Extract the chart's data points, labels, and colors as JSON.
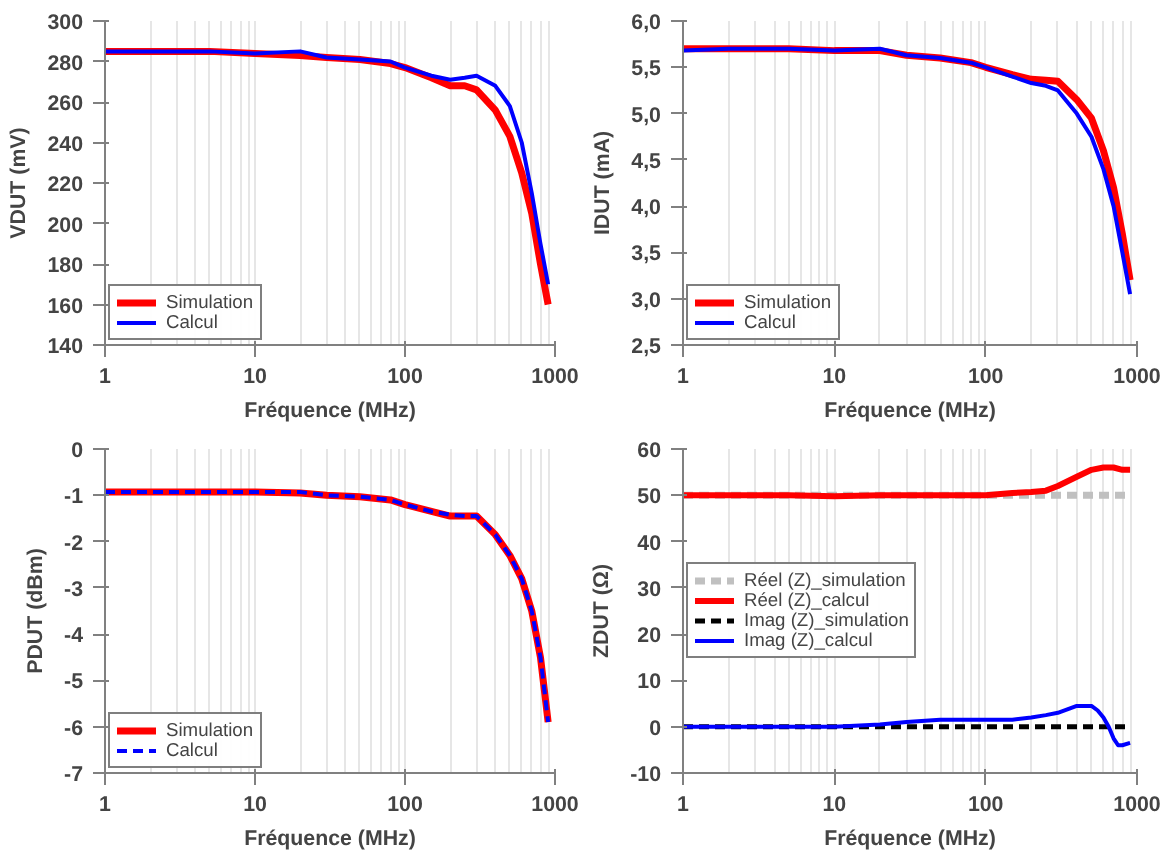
{
  "chart_data": [
    {
      "type": "line",
      "xlabel": "Fréquence (MHz)",
      "ylabel": "VDUT (mV)",
      "log": "x",
      "grid": "x",
      "legend": "bottom left",
      "xlim": [
        1,
        1000
      ],
      "xticks": [
        1,
        10,
        100,
        1000
      ],
      "ylim": [
        140,
        300
      ],
      "yticks": [
        140,
        160,
        180,
        200,
        220,
        240,
        260,
        280,
        300
      ],
      "x": [
        1,
        2,
        5,
        10,
        20,
        30,
        50,
        80,
        100,
        150,
        200,
        250,
        300,
        400,
        500,
        600,
        700,
        800,
        900
      ],
      "series": [
        {
          "name": "Simulation",
          "color": "#ff0000",
          "line_style": "solid",
          "values": [
            285,
            285,
            285,
            284,
            283,
            282,
            281,
            279,
            277,
            272,
            268,
            268,
            266,
            256,
            243,
            225,
            205,
            180,
            160
          ]
        },
        {
          "name": "Calcul",
          "color": "#0000ff",
          "line_style": "solid",
          "values": [
            285,
            285,
            285,
            284,
            285,
            282,
            281,
            280,
            277,
            273,
            271,
            272,
            273,
            268,
            258,
            240,
            215,
            190,
            170
          ]
        }
      ]
    },
    {
      "type": "line",
      "xlabel": "Fréquence (MHz)",
      "ylabel": "IDUT (mA)",
      "log": "x",
      "grid": "x",
      "legend": "bottom left",
      "xlim": [
        1,
        1000
      ],
      "xticks": [
        1,
        10,
        100,
        1000
      ],
      "ylim": [
        2.5,
        6.0
      ],
      "yticks": [
        {
          "value": 2.5,
          "label": "2,5"
        },
        {
          "value": 3.0,
          "label": "3,0"
        },
        {
          "value": 3.5,
          "label": "3,5"
        },
        {
          "value": 4.0,
          "label": "4,0"
        },
        {
          "value": 4.5,
          "label": "4,5"
        },
        {
          "value": 5.0,
          "label": "5,0"
        },
        {
          "value": 5.5,
          "label": "5,5"
        },
        {
          "value": 6.0,
          "label": "6,0"
        }
      ],
      "x": [
        1,
        2,
        5,
        10,
        20,
        30,
        50,
        80,
        100,
        150,
        200,
        250,
        300,
        400,
        500,
        600,
        700,
        800,
        900
      ],
      "series": [
        {
          "name": "Simulation",
          "color": "#ff0000",
          "line_style": "solid",
          "values": [
            5.7,
            5.7,
            5.7,
            5.68,
            5.68,
            5.63,
            5.6,
            5.55,
            5.5,
            5.42,
            5.37,
            5.36,
            5.35,
            5.15,
            4.95,
            4.6,
            4.2,
            3.7,
            3.2
          ]
        },
        {
          "name": "Calcul",
          "color": "#0000ff",
          "line_style": "solid",
          "values": [
            5.68,
            5.7,
            5.7,
            5.68,
            5.7,
            5.63,
            5.6,
            5.55,
            5.5,
            5.4,
            5.33,
            5.3,
            5.25,
            5.0,
            4.75,
            4.4,
            4.0,
            3.5,
            3.05
          ]
        }
      ]
    },
    {
      "type": "line",
      "xlabel": "Fréquence (MHz)",
      "ylabel": "PDUT (dBm)",
      "log": "x",
      "grid": "x",
      "legend": "bottom left",
      "xlim": [
        1,
        1000
      ],
      "xticks": [
        1,
        10,
        100,
        1000
      ],
      "ylim": [
        -7,
        0
      ],
      "yticks": [
        -7,
        -6,
        -5,
        -4,
        -3,
        -2,
        -1,
        0
      ],
      "x": [
        1,
        2,
        5,
        10,
        20,
        30,
        50,
        80,
        100,
        150,
        200,
        250,
        300,
        400,
        500,
        600,
        700,
        800,
        900
      ],
      "series": [
        {
          "name": "Simulation",
          "color": "#ff0000",
          "line_style": "solid",
          "values": [
            -0.93,
            -0.93,
            -0.93,
            -0.93,
            -0.95,
            -1.0,
            -1.03,
            -1.1,
            -1.2,
            -1.35,
            -1.45,
            -1.45,
            -1.45,
            -1.85,
            -2.3,
            -2.8,
            -3.5,
            -4.5,
            -5.9
          ]
        },
        {
          "name": "Calcul",
          "color": "#0000ff",
          "line_style": "dashed",
          "values": [
            -0.93,
            -0.93,
            -0.93,
            -0.93,
            -0.93,
            -1.0,
            -1.03,
            -1.1,
            -1.2,
            -1.35,
            -1.42,
            -1.45,
            -1.45,
            -1.85,
            -2.3,
            -2.8,
            -3.5,
            -4.5,
            -5.9
          ]
        }
      ]
    },
    {
      "type": "line",
      "xlabel": "Fréquence (MHz)",
      "ylabel": "ZDUT (Ω)",
      "log": "x",
      "grid": "x",
      "legend": "left",
      "xlim": [
        1,
        1000
      ],
      "xticks": [
        1,
        10,
        100,
        1000
      ],
      "ylim": [
        -10,
        60
      ],
      "yticks": [
        -10,
        0,
        10,
        20,
        30,
        40,
        50,
        60
      ],
      "x": [
        1,
        2,
        5,
        10,
        20,
        30,
        50,
        100,
        150,
        200,
        250,
        300,
        400,
        500,
        600,
        700,
        800,
        900
      ],
      "series": [
        {
          "name": "Réel (Z)_simulation",
          "color": "#c0c0c0",
          "line_style": "dashed",
          "values": [
            50,
            50,
            50,
            50,
            50,
            50,
            50,
            50,
            50,
            50,
            50,
            50,
            50,
            50,
            50,
            50,
            50,
            50
          ]
        },
        {
          "name": "Réel (Z)_calcul",
          "color": "#ff0000",
          "line_style": "solid",
          "values": [
            50,
            50,
            50,
            49.8,
            50,
            50,
            50,
            50,
            50.5,
            50.7,
            51,
            52,
            54,
            55.5,
            56,
            56,
            55.5,
            55.5
          ]
        },
        {
          "name": "Imag (Z)_simulation",
          "color": "#000000",
          "line_style": "dashed",
          "values": [
            0,
            0,
            0,
            0,
            0,
            0,
            0,
            0,
            0,
            0,
            0,
            0,
            0,
            0,
            0,
            0,
            0,
            0
          ]
        },
        {
          "name": "Imag (Z)_calcul",
          "color": "#0000ff",
          "line_style": "solid",
          "x": [
            1,
            2,
            5,
            10,
            20,
            30,
            50,
            100,
            150,
            200,
            250,
            300,
            400,
            500,
            550,
            600,
            650,
            700,
            750,
            800,
            900
          ],
          "values": [
            0,
            0,
            0,
            0,
            0.5,
            1,
            1.5,
            1.5,
            1.5,
            2,
            2.5,
            3,
            4.5,
            4.5,
            3.5,
            2,
            0,
            -2.5,
            -4,
            -4,
            -3.5
          ]
        }
      ]
    }
  ]
}
